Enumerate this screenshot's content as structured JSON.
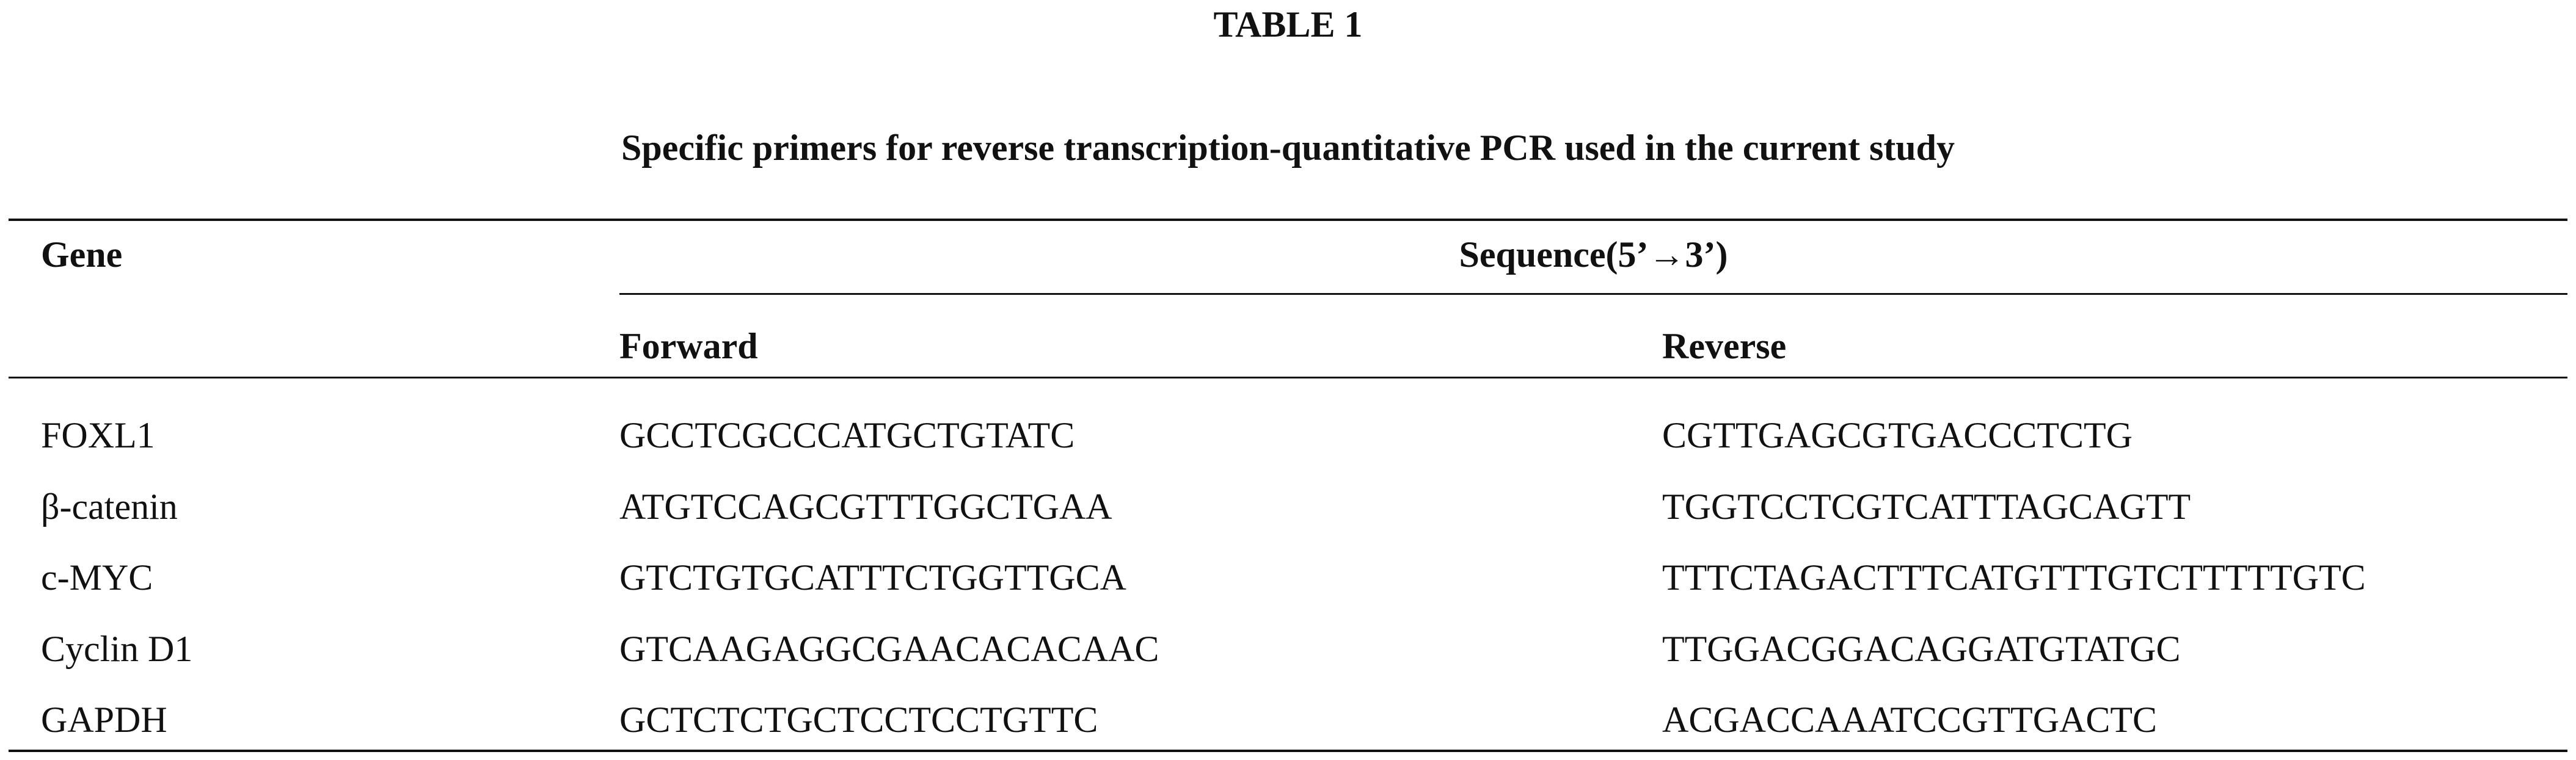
{
  "title": "TABLE 1",
  "caption": "Specific primers for reverse transcription-quantitative PCR used in the current study",
  "header": {
    "gene": "Gene",
    "sequence": "Sequence(5’→3’)",
    "forward": "Forward",
    "reverse": "Reverse"
  },
  "table": {
    "rows": [
      [
        "FOXL1",
        "GCCTCGCCCATGCTGTATC",
        "CGTTGAGCGTGACCCTCTG"
      ],
      [
        "β-catenin",
        "ATGTCCAGCGTTTGGCTGAA",
        "TGGTCCTCGTCATTTAGCAGTT"
      ],
      [
        "c-MYC",
        "GTCTGTGCATTTCTGGTTGCA",
        "TTTCTAGACTTTCATGTTTGTCTTTTTGTC"
      ],
      [
        "Cyclin D1",
        "GTCAAGAGGCGAACACACAAC",
        "TTGGACGGACAGGATGTATGC"
      ],
      [
        "GAPDH",
        "GCTCTCTGCTCCTCCTGTTC",
        "ACGACCAAATCCGTTGACTC"
      ]
    ]
  }
}
